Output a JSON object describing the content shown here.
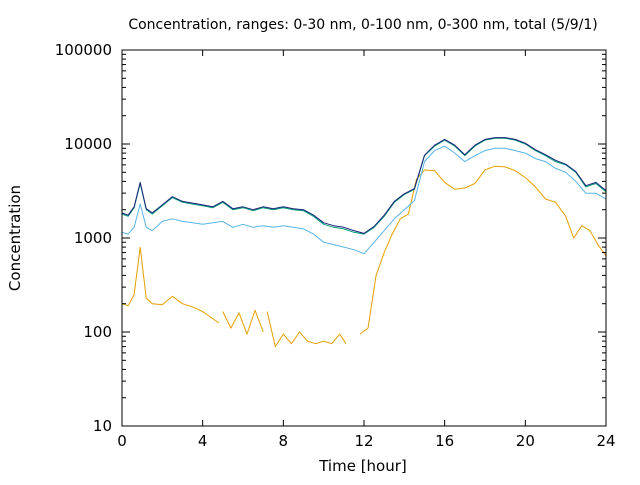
{
  "chart_data": {
    "type": "line",
    "title": "Concentration, ranges: 0-30 nm, 0-100 nm, 0-300 nm, total (5/9/1)",
    "xlabel": "Time [hour]",
    "ylabel": "Concentration",
    "xlim": [
      0,
      24
    ],
    "ylim": [
      10,
      100000
    ],
    "yscale": "log",
    "grid": false,
    "x_ticks": [
      0,
      4,
      8,
      12,
      16,
      20,
      24
    ],
    "x_tick_labels": [
      "0",
      "4",
      "8",
      "12",
      "16",
      "20",
      "24"
    ],
    "y_ticks": [
      10,
      100,
      1000,
      10000,
      100000
    ],
    "y_tick_labels": [
      "10",
      "100",
      "1000",
      "10000",
      "100000"
    ],
    "series": [
      {
        "color": "#e69f00",
        "x": [
          0,
          0.3,
          0.6,
          0.9,
          1.2,
          1.5,
          2.0,
          2.5,
          3.0,
          3.5,
          4.0,
          4.8,
          null,
          5.0,
          5.4,
          5.8,
          6.2,
          6.6,
          7.0,
          null,
          7.2,
          7.6,
          8.0,
          8.4,
          8.8,
          9.2,
          9.6,
          10.0,
          10.4,
          10.8,
          11.1,
          null,
          11.8,
          12.2,
          12.6,
          13.0,
          13.4,
          13.8,
          14.2,
          14.6,
          15.0,
          15.5,
          16.0,
          16.5,
          17.0,
          17.5,
          18.0,
          18.5,
          19.0,
          19.5,
          20.0,
          20.5,
          21.0,
          21.5,
          22.0,
          22.4,
          22.8,
          23.2,
          23.6,
          24.0
        ],
        "y": [
          200,
          190,
          250,
          800,
          230,
          200,
          195,
          240,
          200,
          185,
          165,
          125,
          null,
          165,
          110,
          160,
          95,
          170,
          100,
          null,
          165,
          70,
          95,
          75,
          100,
          80,
          75,
          80,
          75,
          95,
          75,
          null,
          95,
          110,
          400,
          700,
          1100,
          1600,
          1800,
          4200,
          5300,
          5200,
          3900,
          3300,
          3400,
          3800,
          5300,
          5800,
          5700,
          5200,
          4400,
          3500,
          2600,
          2400,
          1700,
          1000,
          1350,
          1200,
          850,
          650
        ]
      },
      {
        "color": "#56b4e9",
        "x": [
          0,
          0.3,
          0.6,
          0.9,
          1.2,
          1.5,
          2.0,
          2.5,
          3.0,
          3.5,
          4.0,
          4.5,
          5.0,
          5.5,
          6.0,
          6.5,
          7.0,
          7.5,
          8.0,
          8.5,
          9.0,
          9.5,
          10.0,
          10.5,
          11.0,
          11.5,
          12.0,
          12.5,
          13.0,
          13.5,
          14.0,
          14.5,
          15.0,
          15.5,
          16.0,
          16.5,
          17.0,
          17.5,
          18.0,
          18.5,
          19.0,
          19.5,
          20.0,
          20.5,
          21.0,
          21.5,
          22.0,
          22.5,
          23.0,
          23.5,
          24.0
        ],
        "y": [
          1150,
          1100,
          1300,
          2300,
          1300,
          1200,
          1500,
          1600,
          1500,
          1450,
          1400,
          1450,
          1500,
          1300,
          1400,
          1300,
          1350,
          1300,
          1350,
          1300,
          1250,
          1100,
          900,
          850,
          800,
          750,
          680,
          900,
          1200,
          1600,
          2000,
          2500,
          6500,
          8500,
          9500,
          8000,
          6500,
          7500,
          8500,
          9000,
          9000,
          8500,
          8000,
          7000,
          6500,
          5500,
          5000,
          4000,
          3000,
          3000,
          2600
        ]
      },
      {
        "color": "#009e73",
        "x": [
          0,
          0.3,
          0.6,
          0.9,
          1.2,
          1.5,
          2.0,
          2.5,
          3.0,
          3.5,
          4.0,
          4.5,
          5.0,
          5.5,
          6.0,
          6.5,
          7.0,
          7.5,
          8.0,
          8.5,
          9.0,
          9.5,
          10.0,
          10.5,
          11.0,
          11.5,
          12.0,
          12.5,
          13.0,
          13.5,
          14.0,
          14.5,
          15.0,
          15.5,
          16.0,
          16.5,
          17.0,
          17.5,
          18.0,
          18.5,
          19.0,
          19.5,
          20.0,
          20.5,
          21.0,
          21.5,
          22.0,
          22.5,
          23.0,
          23.5,
          24.0
        ],
        "y": [
          1800,
          1700,
          2100,
          3800,
          2000,
          1800,
          2200,
          2700,
          2400,
          2300,
          2200,
          2100,
          2400,
          2000,
          2100,
          1950,
          2100,
          2000,
          2100,
          2000,
          1950,
          1700,
          1400,
          1300,
          1250,
          1150,
          1100,
          1300,
          1700,
          2400,
          2900,
          3300,
          7500,
          9500,
          11000,
          9500,
          7500,
          9500,
          11000,
          11500,
          11500,
          11000,
          10000,
          8500,
          7500,
          6500,
          6000,
          5000,
          3500,
          3800,
          3100
        ]
      },
      {
        "color": "#1a237e",
        "x": [
          0,
          0.3,
          0.6,
          0.9,
          1.2,
          1.5,
          2.0,
          2.5,
          3.0,
          3.5,
          4.0,
          4.5,
          5.0,
          5.5,
          6.0,
          6.5,
          7.0,
          7.5,
          8.0,
          8.5,
          9.0,
          9.5,
          10.0,
          10.5,
          11.0,
          11.5,
          12.0,
          12.5,
          13.0,
          13.5,
          14.0,
          14.5,
          15.0,
          15.5,
          16.0,
          16.5,
          17.0,
          17.5,
          18.0,
          18.5,
          19.0,
          19.5,
          20.0,
          20.5,
          21.0,
          21.5,
          22.0,
          22.5,
          23.0,
          23.5,
          24.0
        ],
        "y": [
          1850,
          1750,
          2150,
          3900,
          2050,
          1850,
          2250,
          2750,
          2450,
          2350,
          2250,
          2150,
          2450,
          2050,
          2150,
          2000,
          2150,
          2050,
          2150,
          2050,
          2000,
          1750,
          1450,
          1350,
          1300,
          1200,
          1120,
          1330,
          1750,
          2450,
          2950,
          3350,
          7600,
          9700,
          11200,
          9700,
          7700,
          9700,
          11200,
          11700,
          11700,
          11200,
          10200,
          8700,
          7700,
          6700,
          6100,
          5100,
          3600,
          3900,
          3200
        ]
      }
    ]
  }
}
